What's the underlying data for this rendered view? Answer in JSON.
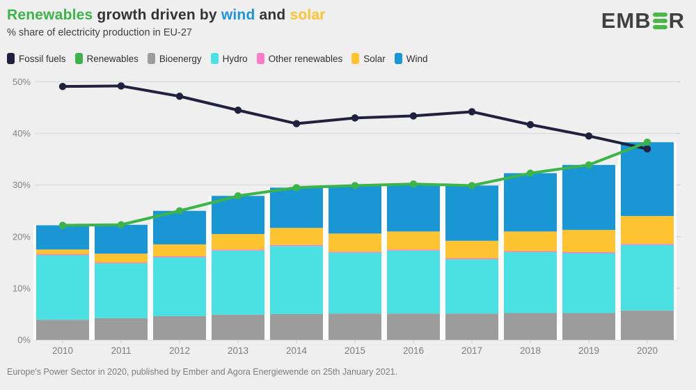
{
  "header": {
    "title_parts": [
      {
        "text": "Renewables",
        "color": "#3cb44a"
      },
      {
        "text": " growth driven by ",
        "color": "#333333"
      },
      {
        "text": "wind",
        "color": "#1d96d9"
      },
      {
        "text": " and ",
        "color": "#333333"
      },
      {
        "text": "solar",
        "color": "#fdc331"
      }
    ],
    "subtitle": "% share of electricity production in EU-27"
  },
  "logo": {
    "text_left": "EMB",
    "text_right": "R",
    "bar_color": "#4bb748",
    "text_color": "#404040"
  },
  "legend": {
    "items": [
      {
        "label": "Fossil fuels",
        "color": "#21213f"
      },
      {
        "label": "Renewables",
        "color": "#3cb44a"
      },
      {
        "label": "Bioenergy",
        "color": "#9c9c9c"
      },
      {
        "label": "Hydro",
        "color": "#4be1e3"
      },
      {
        "label": "Other renewables",
        "color": "#fb7bc5"
      },
      {
        "label": "Solar",
        "color": "#fdc331"
      },
      {
        "label": "Wind",
        "color": "#1a96d5"
      }
    ]
  },
  "chart_data": {
    "type": "bar",
    "subtype": "stacked bars with overlaid lines",
    "categories": [
      2010,
      2011,
      2012,
      2013,
      2014,
      2015,
      2016,
      2017,
      2018,
      2019,
      2020
    ],
    "stack_series": [
      {
        "name": "Bioenergy",
        "color": "#9c9c9c",
        "values": [
          3.9,
          4.2,
          4.6,
          4.9,
          5.0,
          5.1,
          5.1,
          5.1,
          5.2,
          5.2,
          5.7
        ]
      },
      {
        "name": "Hydro",
        "color": "#4be1e3",
        "values": [
          12.5,
          10.6,
          11.4,
          12.4,
          13.2,
          11.8,
          12.2,
          10.5,
          11.8,
          11.6,
          12.7
        ]
      },
      {
        "name": "Other renewables",
        "color": "#fb7bc5",
        "values": [
          0.2,
          0.2,
          0.2,
          0.2,
          0.2,
          0.2,
          0.2,
          0.2,
          0.2,
          0.2,
          0.2
        ]
      },
      {
        "name": "Solar",
        "color": "#fdc331",
        "values": [
          0.9,
          1.7,
          2.3,
          3.0,
          3.3,
          3.5,
          3.5,
          3.4,
          3.8,
          4.3,
          5.4
        ]
      },
      {
        "name": "Wind",
        "color": "#1a96d5",
        "values": [
          4.7,
          5.6,
          6.5,
          7.4,
          7.8,
          9.3,
          9.2,
          10.7,
          11.3,
          12.6,
          14.3
        ]
      }
    ],
    "line_series": [
      {
        "name": "Fossil fuels",
        "color": "#21213f",
        "values": [
          49.1,
          49.2,
          47.2,
          44.5,
          41.9,
          43.0,
          43.4,
          44.2,
          41.7,
          39.5,
          37.0
        ]
      },
      {
        "name": "Renewables",
        "color": "#3cb44a",
        "values": [
          22.2,
          22.3,
          25.0,
          27.9,
          29.5,
          29.9,
          30.2,
          29.9,
          32.3,
          33.9,
          38.3
        ]
      }
    ],
    "title": "Renewables growth driven by wind and solar",
    "xlabel": "",
    "ylabel": "% share of electricity production in EU-27",
    "ylim": [
      0,
      50
    ],
    "yticks": [
      0,
      10,
      20,
      30,
      40,
      50
    ],
    "ytick_suffix": "%",
    "grid": "horizontal",
    "legend_position": "top"
  },
  "footer": {
    "source": "Europe's Power Sector in 2020, published by Ember and Agora Energiewende on 25th January 2021."
  }
}
